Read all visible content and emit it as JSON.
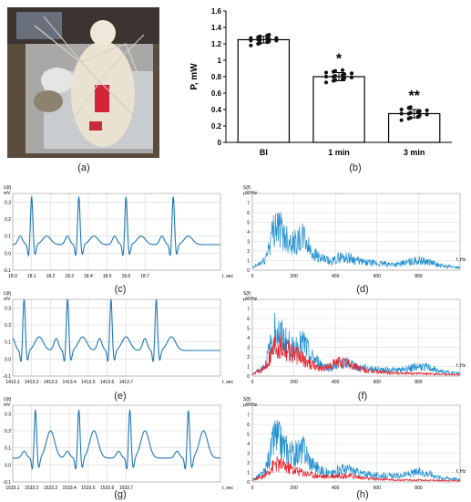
{
  "panel_labels": {
    "a": "(a)",
    "b": "(b)",
    "c": "(c)",
    "d": "(d)",
    "e": "(e)",
    "f": "(f)",
    "g": "(g)",
    "h": "(h)"
  },
  "colors": {
    "ecg": "#1f77b4",
    "spec_blue": "#1f8fd0",
    "spec_red": "#e8202a",
    "bar_dot": "#111111"
  },
  "chart_data": [
    {
      "id": "b",
      "type": "bar",
      "categories": [
        "Bl",
        "1 min",
        "3 min"
      ],
      "values": [
        1.25,
        0.8,
        0.35
      ],
      "errors": [
        0.04,
        0.05,
        0.05
      ],
      "significance": [
        "",
        "*",
        "**"
      ],
      "ylabel": "P, mW",
      "ylim": [
        0,
        1.6
      ],
      "yticks": [
        "0",
        "0.2",
        "0.4",
        "0.6",
        "0.8",
        "1",
        "1.2",
        "1.4",
        "1.6"
      ],
      "points": [
        [
          1.18,
          1.2,
          1.21,
          1.22,
          1.23,
          1.24,
          1.24,
          1.25,
          1.25,
          1.26,
          1.26,
          1.27,
          1.27,
          1.28,
          1.29,
          1.3,
          1.31
        ],
        [
          0.73,
          0.75,
          0.76,
          0.77,
          0.78,
          0.79,
          0.8,
          0.8,
          0.81,
          0.82,
          0.83,
          0.84,
          0.85,
          0.86,
          0.87,
          0.88
        ],
        [
          0.27,
          0.29,
          0.3,
          0.31,
          0.33,
          0.34,
          0.35,
          0.35,
          0.36,
          0.37,
          0.38,
          0.39,
          0.4,
          0.42,
          0.43
        ]
      ]
    },
    {
      "id": "c",
      "type": "line",
      "ylabel_line1": "U(t)",
      "ylabel_line2": "mV",
      "xunit": "t, sec",
      "ylim": [
        -0.1,
        0.35
      ],
      "xlim": [
        18.0,
        19.1
      ],
      "xticks": [
        "18.0",
        "18.1",
        "18.2",
        "18.3",
        "18.4",
        "18.5",
        "18.6",
        "18.7"
      ],
      "yticks": [
        "-0.1",
        "0.0",
        "0.1",
        "0.2",
        "0.3"
      ],
      "peaks": [
        18.1,
        18.35,
        18.6,
        18.85
      ],
      "peak_height": 0.33,
      "baseline": 0.05,
      "p_wave": 0.1,
      "t_wave": 0.1
    },
    {
      "id": "d",
      "type": "line",
      "ylabel_line1": "S(f)",
      "ylabel_line2": "µW/Hz",
      "xunit": "f, Hz",
      "ylim": [
        0,
        8
      ],
      "xlim": [
        0,
        1000
      ],
      "xticks": [
        "0",
        "200",
        "400",
        "600",
        "800"
      ],
      "yticks": [
        "0",
        "1",
        "2",
        "3",
        "4",
        "5",
        "6",
        "7"
      ],
      "series": [
        {
          "color": "blue",
          "envelope": [
            [
              0,
              0.3
            ],
            [
              60,
              1.5
            ],
            [
              110,
              7.2
            ],
            [
              160,
              5.2
            ],
            [
              200,
              4.2
            ],
            [
              250,
              5.0
            ],
            [
              280,
              3.0
            ],
            [
              330,
              1.8
            ],
            [
              380,
              1.2
            ],
            [
              420,
              2.0
            ],
            [
              470,
              1.9
            ],
            [
              520,
              1.3
            ],
            [
              600,
              1.0
            ],
            [
              700,
              0.9
            ],
            [
              800,
              1.5
            ],
            [
              850,
              1.3
            ],
            [
              900,
              0.7
            ],
            [
              1000,
              0.4
            ]
          ]
        }
      ]
    },
    {
      "id": "e",
      "type": "line",
      "ylabel_line1": "U(t)",
      "ylabel_line2": "mV",
      "xunit": "t, sec",
      "ylim": [
        -0.1,
        0.35
      ],
      "xlim": [
        1413.1,
        1414.2
      ],
      "xticks": [
        "1413.1",
        "1413.2",
        "1413.3",
        "1413.4",
        "1413.5",
        "1413.6",
        "1413.7"
      ],
      "yticks": [
        "-0.1",
        "0.0",
        "0.1",
        "0.2",
        "0.3"
      ],
      "peaks": [
        1413.16,
        1413.39,
        1413.62,
        1413.86
      ],
      "peak_height": 0.35,
      "baseline": 0.05,
      "p_wave": 0.12,
      "t_wave": 0.13
    },
    {
      "id": "f",
      "type": "line",
      "ylabel_line1": "S(f)",
      "ylabel_line2": "µW/Hz",
      "xunit": "f, Hz",
      "ylim": [
        0,
        8
      ],
      "xlim": [
        0,
        1000
      ],
      "xticks": [
        "0",
        "200",
        "400",
        "600",
        "800"
      ],
      "yticks": [
        "0",
        "1",
        "2",
        "3",
        "4",
        "5",
        "6",
        "7"
      ],
      "series": [
        {
          "color": "blue",
          "envelope": [
            [
              0,
              0.3
            ],
            [
              60,
              1.5
            ],
            [
              110,
              7.2
            ],
            [
              160,
              5.2
            ],
            [
              200,
              4.2
            ],
            [
              250,
              5.0
            ],
            [
              280,
              3.0
            ],
            [
              330,
              1.8
            ],
            [
              380,
              1.2
            ],
            [
              420,
              2.0
            ],
            [
              470,
              1.9
            ],
            [
              520,
              1.3
            ],
            [
              600,
              1.0
            ],
            [
              700,
              0.9
            ],
            [
              800,
              1.5
            ],
            [
              850,
              1.3
            ],
            [
              900,
              0.7
            ],
            [
              1000,
              0.4
            ]
          ]
        },
        {
          "color": "red",
          "envelope": [
            [
              0,
              0.2
            ],
            [
              60,
              1.2
            ],
            [
              110,
              5.2
            ],
            [
              160,
              4.5
            ],
            [
              200,
              3.5
            ],
            [
              250,
              2.5
            ],
            [
              300,
              1.5
            ],
            [
              350,
              1.2
            ],
            [
              420,
              2.2
            ],
            [
              480,
              1.6
            ],
            [
              550,
              0.8
            ],
            [
              650,
              0.5
            ],
            [
              800,
              0.4
            ],
            [
              1000,
              0.2
            ]
          ]
        }
      ]
    },
    {
      "id": "g",
      "type": "line",
      "ylabel_line1": "U(t)",
      "ylabel_line2": "mV",
      "xunit": "t, sec",
      "ylim": [
        -0.1,
        0.35
      ],
      "xlim": [
        1533.1,
        1534.2
      ],
      "xticks": [
        "1533.1",
        "1533.2",
        "1533.3",
        "1533.4",
        "1533.5",
        "1533.6",
        "1533.7"
      ],
      "yticks": [
        "-0.1",
        "0.0",
        "0.1",
        "0.2",
        "0.3"
      ],
      "peaks": [
        1533.22,
        1533.45,
        1533.72,
        1534.03
      ],
      "peak_height": 0.32,
      "baseline": 0.04,
      "p_wave": 0.08,
      "t_wave": 0.2
    },
    {
      "id": "h",
      "type": "line",
      "ylabel_line1": "S(f)",
      "ylabel_line2": "µW/Hz",
      "xunit": "f, Hz",
      "ylim": [
        0,
        8
      ],
      "xlim": [
        0,
        1000
      ],
      "xticks": [
        "0",
        "200",
        "400",
        "600",
        "800"
      ],
      "yticks": [
        "0",
        "1",
        "2",
        "3",
        "4",
        "5",
        "6",
        "7"
      ],
      "series": [
        {
          "color": "blue",
          "envelope": [
            [
              0,
              0.3
            ],
            [
              60,
              1.5
            ],
            [
              110,
              7.2
            ],
            [
              160,
              5.2
            ],
            [
              200,
              4.2
            ],
            [
              250,
              5.0
            ],
            [
              280,
              3.0
            ],
            [
              330,
              1.8
            ],
            [
              380,
              1.2
            ],
            [
              420,
              2.0
            ],
            [
              470,
              1.9
            ],
            [
              520,
              1.3
            ],
            [
              600,
              1.0
            ],
            [
              700,
              0.9
            ],
            [
              800,
              1.5
            ],
            [
              850,
              1.3
            ],
            [
              900,
              0.7
            ],
            [
              1000,
              0.4
            ]
          ]
        },
        {
          "color": "red",
          "envelope": [
            [
              0,
              0.2
            ],
            [
              60,
              1.0
            ],
            [
              110,
              2.8
            ],
            [
              160,
              2.4
            ],
            [
              200,
              1.8
            ],
            [
              250,
              1.4
            ],
            [
              300,
              1.0
            ],
            [
              350,
              0.8
            ],
            [
              420,
              1.0
            ],
            [
              480,
              0.9
            ],
            [
              550,
              0.5
            ],
            [
              700,
              0.3
            ],
            [
              1000,
              0.2
            ]
          ]
        }
      ]
    }
  ]
}
